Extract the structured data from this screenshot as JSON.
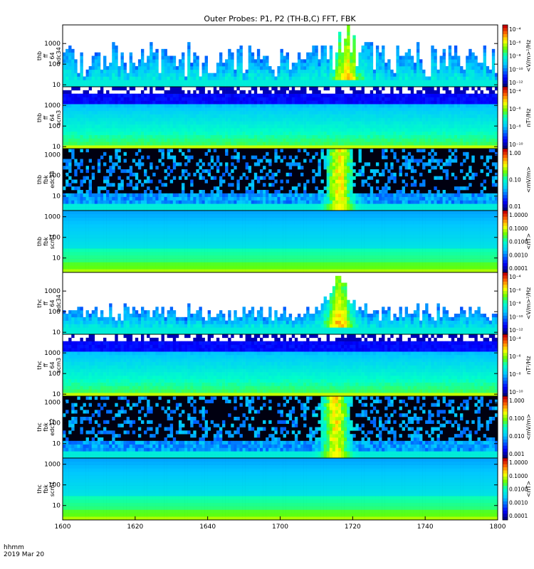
{
  "chart_data": {
    "type": "heatmap",
    "title": "Outer Probes: P1, P2 (TH-B,C) FFT, FBK",
    "date_label": "2019 Mar 20",
    "time_label": "hhmm",
    "x_ticks": [
      "1600",
      "1620",
      "1640",
      "1700",
      "1720",
      "1740",
      "1800"
    ],
    "x_range": [
      "16:00",
      "18:00"
    ],
    "panels": [
      {
        "probe": "thb",
        "instrument": "ff",
        "band": "64",
        "channel": "edc34",
        "y_ticks": [
          "1000",
          "100",
          "10"
        ],
        "ylim": [
          8,
          8000
        ],
        "y_log": true,
        "colorbar_label": "<V/m>²/Hz",
        "colorbar_ticks": [
          "10⁻⁴",
          "10⁻⁶",
          "10⁻⁸",
          "10⁻¹⁰",
          "10⁻¹²"
        ],
        "style": "ffe",
        "activity_peak_hhmm": "1718"
      },
      {
        "probe": "thb",
        "instrument": "ff",
        "band": "64",
        "channel": "scm3",
        "y_ticks": [
          "1000",
          "100",
          "10"
        ],
        "ylim": [
          8,
          8000
        ],
        "y_log": true,
        "colorbar_label": "nT²/Hz",
        "colorbar_ticks": [
          "10⁻⁴",
          "10⁻⁶",
          "10⁻⁸",
          "10⁻¹⁰"
        ],
        "style": "ffs",
        "activity_peak_hhmm": ""
      },
      {
        "probe": "thb",
        "instrument": "fbk",
        "band": "",
        "channel": "edc34",
        "y_ticks": [
          "1000",
          "100",
          "10"
        ],
        "ylim": [
          2,
          2000
        ],
        "y_log": true,
        "colorbar_label": "<mV/m>",
        "colorbar_ticks": [
          "1.00",
          "0.10",
          "0.01"
        ],
        "style": "fbe",
        "activity_peak_hhmm": "1716"
      },
      {
        "probe": "thb",
        "instrument": "fbk",
        "band": "",
        "channel": "scm1",
        "y_ticks": [
          "1000",
          "100",
          "10"
        ],
        "ylim": [
          2,
          2000
        ],
        "y_log": true,
        "colorbar_label": "<nT>",
        "colorbar_ticks": [
          "1.0000",
          "0.1000",
          "0.0100",
          "0.0010",
          "0.0001"
        ],
        "style": "fbs",
        "activity_peak_hhmm": ""
      },
      {
        "probe": "thc",
        "instrument": "ff",
        "band": "64",
        "channel": "edc34",
        "y_ticks": [
          "1000",
          "100",
          "10"
        ],
        "ylim": [
          8,
          8000
        ],
        "y_log": true,
        "colorbar_label": "<V/m>²/Hz",
        "colorbar_ticks": [
          "10⁻⁴",
          "10⁻⁶",
          "10⁻⁸",
          "10⁻¹⁰",
          "10⁻¹²"
        ],
        "style": "ffe2",
        "activity_peak_hhmm": "1716"
      },
      {
        "probe": "thc",
        "instrument": "ff",
        "band": "64",
        "channel": "scm3",
        "y_ticks": [
          "1000",
          "100",
          "10"
        ],
        "ylim": [
          8,
          8000
        ],
        "y_log": true,
        "colorbar_label": "nT²/Hz",
        "colorbar_ticks": [
          "10⁻⁴",
          "10⁻⁶",
          "10⁻⁸",
          "10⁻¹⁰"
        ],
        "style": "ffs",
        "activity_peak_hhmm": ""
      },
      {
        "probe": "thc",
        "instrument": "fbk",
        "band": "",
        "channel": "edc12",
        "y_ticks": [
          "1000",
          "100",
          "10"
        ],
        "ylim": [
          2,
          2000
        ],
        "y_log": true,
        "colorbar_label": "<mV/m>",
        "colorbar_ticks": [
          "1.000",
          "0.100",
          "0.010",
          "0.001"
        ],
        "style": "fbe2",
        "activity_peak_hhmm": "1715"
      },
      {
        "probe": "thc",
        "instrument": "fbk",
        "band": "",
        "channel": "scm1",
        "y_ticks": [
          "1000",
          "100",
          "10"
        ],
        "ylim": [
          2,
          2000
        ],
        "y_log": true,
        "colorbar_label": "<nT>",
        "colorbar_ticks": [
          "1.0000",
          "0.1000",
          "0.0100",
          "0.0010",
          "0.0001"
        ],
        "style": "fbs",
        "activity_peak_hhmm": ""
      }
    ]
  }
}
